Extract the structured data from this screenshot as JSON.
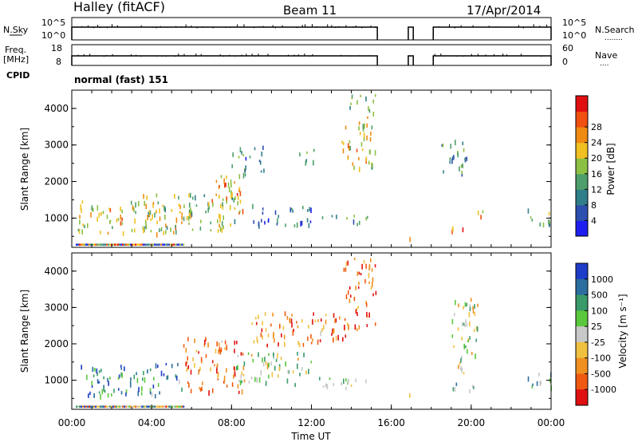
{
  "header": {
    "station": "Halley (fitACF)",
    "beam": "Beam 11",
    "date": "17/Apr/2014"
  },
  "panel_labels": {
    "nsky": "N.Sky",
    "nsearch": "N.Search",
    "nsearch_dots": "........",
    "freq": "Freq.",
    "freq_unit": "[MHz]",
    "nave": "Nave",
    "nave_dots": "....",
    "cpid": "CPID",
    "cpid_value": "normal (fast) 151"
  },
  "chart_data": [
    {
      "type": "line",
      "name": "noise",
      "yticks_left": [
        "10^5",
        "10^0"
      ],
      "yticks_right": [
        "10^5",
        "10^0"
      ],
      "segments": [
        [
          0,
          15.3
        ],
        [
          16.85,
          17.1
        ],
        [
          18.1,
          24
        ]
      ]
    },
    {
      "type": "line",
      "name": "frequency",
      "yticks_left": [
        "18",
        "8"
      ],
      "yticks_right": [
        "60",
        "0"
      ],
      "segments": [
        [
          0,
          15.3
        ],
        [
          16.85,
          17.1
        ],
        [
          18.1,
          24
        ]
      ]
    },
    {
      "type": "heatmap",
      "name": "power",
      "ylabel": "Slant Range [km]",
      "yticks": [
        "1000",
        "2000",
        "3000",
        "4000"
      ],
      "ylim": [
        200,
        4500
      ],
      "xlim": [
        0,
        24
      ],
      "colorbar": {
        "label": "Power [dB]",
        "ticks": [
          "4",
          "8",
          "12",
          "16",
          "20",
          "24",
          "28"
        ],
        "colors": [
          "#1e1ef0",
          "#2d4fb0",
          "#2f7e8a",
          "#4d9e6a",
          "#8cc044",
          "#f0c020",
          "#f08a10",
          "#f05010",
          "#e01010"
        ]
      },
      "echo_regions": [
        {
          "t": [
            0.3,
            5.5
          ],
          "r": [
            600,
            1500
          ],
          "v": 0.6
        },
        {
          "t": [
            3.5,
            8.2
          ],
          "r": [
            700,
            1700
          ],
          "v": 0.5
        },
        {
          "t": [
            7.0,
            8.6
          ],
          "r": [
            1000,
            2200
          ],
          "v": 0.7
        },
        {
          "t": [
            8.0,
            9.6
          ],
          "r": [
            2200,
            3000
          ],
          "v": 0.3
        },
        {
          "t": [
            9.0,
            12.0
          ],
          "r": [
            800,
            1400
          ],
          "v": 0.2
        },
        {
          "t": [
            11.2,
            12.2
          ],
          "r": [
            2500,
            2900
          ],
          "v": 0.5
        },
        {
          "t": [
            12.5,
            14.8
          ],
          "r": [
            850,
            1100
          ],
          "v": 0.3
        },
        {
          "t": [
            13.5,
            15.2
          ],
          "r": [
            2300,
            3800
          ],
          "v": 0.6
        },
        {
          "t": [
            13.8,
            15.2
          ],
          "r": [
            3900,
            4400
          ],
          "v": 0.4
        },
        {
          "t": [
            18.5,
            19.8
          ],
          "r": [
            2200,
            3200
          ],
          "v": 0.3
        },
        {
          "t": [
            19.0,
            19.6
          ],
          "r": [
            600,
            900
          ],
          "v": 0.8
        },
        {
          "t": [
            20.0,
            20.6
          ],
          "r": [
            1000,
            1300
          ],
          "v": 0.7
        },
        {
          "t": [
            22.8,
            24.0
          ],
          "r": [
            800,
            1300
          ],
          "v": 0.4
        },
        {
          "t": [
            16.85,
            17.0
          ],
          "r": [
            350,
            650
          ],
          "v": 0.9
        }
      ]
    },
    {
      "type": "heatmap",
      "name": "velocity",
      "ylabel": "Slant Range [km]",
      "xlabel": "Time UT",
      "yticks": [
        "1000",
        "2000",
        "3000",
        "4000"
      ],
      "xticks": [
        "00:00",
        "04:00",
        "08:00",
        "12:00",
        "16:00",
        "20:00",
        "00:00"
      ],
      "ylim": [
        200,
        4500
      ],
      "xlim": [
        0,
        24
      ],
      "colorbar": {
        "label": "Velocity [m s⁻¹]",
        "ticks": [
          "1000",
          "500",
          "100",
          "25",
          "-25",
          "-100",
          "-500",
          "-1000"
        ],
        "colors": [
          "#1e3cc8",
          "#2d6ea0",
          "#3a9a6a",
          "#5ac83c",
          "#c8c8c8",
          "#f0c040",
          "#f09020",
          "#f05a10",
          "#e01010"
        ]
      },
      "echo_regions": [
        {
          "t": [
            0.3,
            5.5
          ],
          "r": [
            600,
            1500
          ],
          "v": 0.2
        },
        {
          "t": [
            5.5,
            8.6
          ],
          "r": [
            700,
            2200
          ],
          "v": 0.8
        },
        {
          "t": [
            8.2,
            12.0
          ],
          "r": [
            900,
            1800
          ],
          "v": 0.45
        },
        {
          "t": [
            9.0,
            13.8
          ],
          "r": [
            2000,
            2900
          ],
          "v": 0.8
        },
        {
          "t": [
            12.0,
            15.2
          ],
          "r": [
            800,
            1100
          ],
          "v": 0.45
        },
        {
          "t": [
            13.6,
            15.2
          ],
          "r": [
            2400,
            4400
          ],
          "v": 0.85
        },
        {
          "t": [
            19.0,
            20.3
          ],
          "r": [
            1200,
            3300
          ],
          "v": 0.5
        },
        {
          "t": [
            19.0,
            20.2
          ],
          "r": [
            700,
            1000
          ],
          "v": 0.3
        },
        {
          "t": [
            22.8,
            24.0
          ],
          "r": [
            800,
            1300
          ],
          "v": 0.25
        },
        {
          "t": [
            16.85,
            17.0
          ],
          "r": [
            350,
            650
          ],
          "v": 0.85
        }
      ]
    }
  ]
}
